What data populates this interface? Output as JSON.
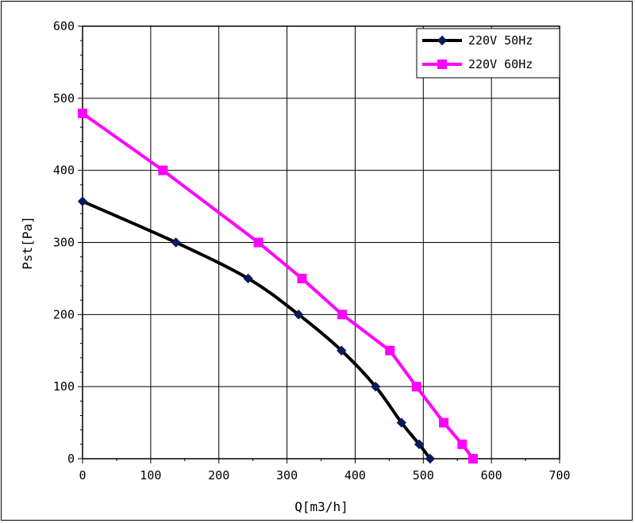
{
  "chart_data": {
    "type": "line",
    "title": "",
    "xlabel": "Q[m3/h]",
    "ylabel": "Pst[Pa]",
    "xlim": [
      0,
      700
    ],
    "ylim": [
      0,
      600
    ],
    "xticks": [
      0,
      100,
      200,
      300,
      400,
      500,
      600,
      700
    ],
    "yticks": [
      0,
      100,
      200,
      300,
      400,
      500,
      600
    ],
    "grid": true,
    "legend_position": "top-right",
    "series": [
      {
        "name": "220V 50Hz",
        "color": "#000000",
        "marker": "diamond",
        "marker_color": "#0a1a5c",
        "x": [
          0,
          137,
          243,
          317,
          380,
          430,
          468,
          494,
          510
        ],
        "y": [
          357,
          300,
          250,
          200,
          150,
          100,
          50,
          20,
          0
        ]
      },
      {
        "name": "220V 60Hz",
        "color": "#ff00ff",
        "marker": "square",
        "marker_color": "#ff00ff",
        "x": [
          0,
          118,
          258,
          322,
          381,
          451,
          490,
          530,
          557,
          573
        ],
        "y": [
          479,
          400,
          300,
          250,
          200,
          150,
          100,
          50,
          20,
          0
        ]
      }
    ]
  }
}
